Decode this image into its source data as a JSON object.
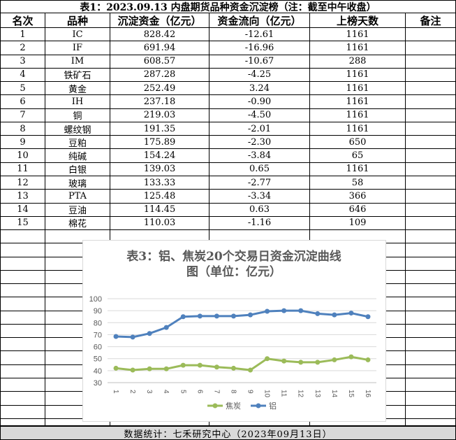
{
  "table": {
    "title": "表1：2023.09.13 内盘期货品种资金沉淀榜（注：截至中午收盘）",
    "headers": [
      "名次",
      "品种",
      "沉淀资金（亿元）",
      "资金流向（亿元）",
      "上榜天数",
      "备注"
    ],
    "rows": [
      [
        "1",
        "IC",
        "828.42",
        "-12.61",
        "1161",
        ""
      ],
      [
        "2",
        "IF",
        "691.94",
        "-16.96",
        "1161",
        ""
      ],
      [
        "3",
        "IM",
        "608.57",
        "-10.67",
        "288",
        ""
      ],
      [
        "4",
        "铁矿石",
        "287.28",
        "-4.25",
        "1161",
        ""
      ],
      [
        "5",
        "黄金",
        "252.49",
        "3.24",
        "1161",
        ""
      ],
      [
        "6",
        "IH",
        "237.18",
        "-0.90",
        "1161",
        ""
      ],
      [
        "7",
        "铜",
        "219.03",
        "-4.50",
        "1161",
        ""
      ],
      [
        "8",
        "螺纹钢",
        "191.35",
        "-2.01",
        "1161",
        ""
      ],
      [
        "9",
        "豆粕",
        "175.89",
        "-2.30",
        "650",
        ""
      ],
      [
        "10",
        "纯碱",
        "154.24",
        "-3.84",
        "65",
        ""
      ],
      [
        "11",
        "白银",
        "139.03",
        "0.65",
        "1161",
        ""
      ],
      [
        "12",
        "玻璃",
        "133.33",
        "-2.77",
        "58",
        ""
      ],
      [
        "13",
        "PTA",
        "125.48",
        "-3.34",
        "366",
        ""
      ],
      [
        "14",
        "豆油",
        "114.45",
        "0.63",
        "646",
        ""
      ],
      [
        "15",
        "棉花",
        "110.03",
        "-1.16",
        "109",
        ""
      ]
    ]
  },
  "footer": "数据统计：七禾研究中心（2023年09月13日）",
  "chart_data": {
    "type": "line",
    "title_line1": "表3：铝、焦炭20个交易日资金沉淀曲线",
    "title_line2": "图（单位：亿元）",
    "x": [
      "1",
      "2",
      "3",
      "4",
      "5",
      "6",
      "7",
      "8",
      "9",
      "10",
      "11",
      "12",
      "13",
      "14",
      "15",
      "16"
    ],
    "ylim": [
      30,
      100
    ],
    "yticks": [
      30,
      40,
      50,
      60,
      70,
      80,
      90,
      100
    ],
    "grid": true,
    "legend": "bottom",
    "series": [
      {
        "name": "焦炭",
        "color": "#9bbb59",
        "values": [
          42,
          40.5,
          41.5,
          41.5,
          44.5,
          44.5,
          43,
          42,
          40.5,
          50,
          48,
          47,
          47,
          49,
          51.5,
          49
        ]
      },
      {
        "name": "铝",
        "color": "#4f81bd",
        "values": [
          68.5,
          68,
          71,
          76,
          85,
          85.5,
          85.5,
          85.5,
          86.5,
          89.5,
          90,
          90,
          87.5,
          86.5,
          88,
          85
        ]
      }
    ]
  }
}
